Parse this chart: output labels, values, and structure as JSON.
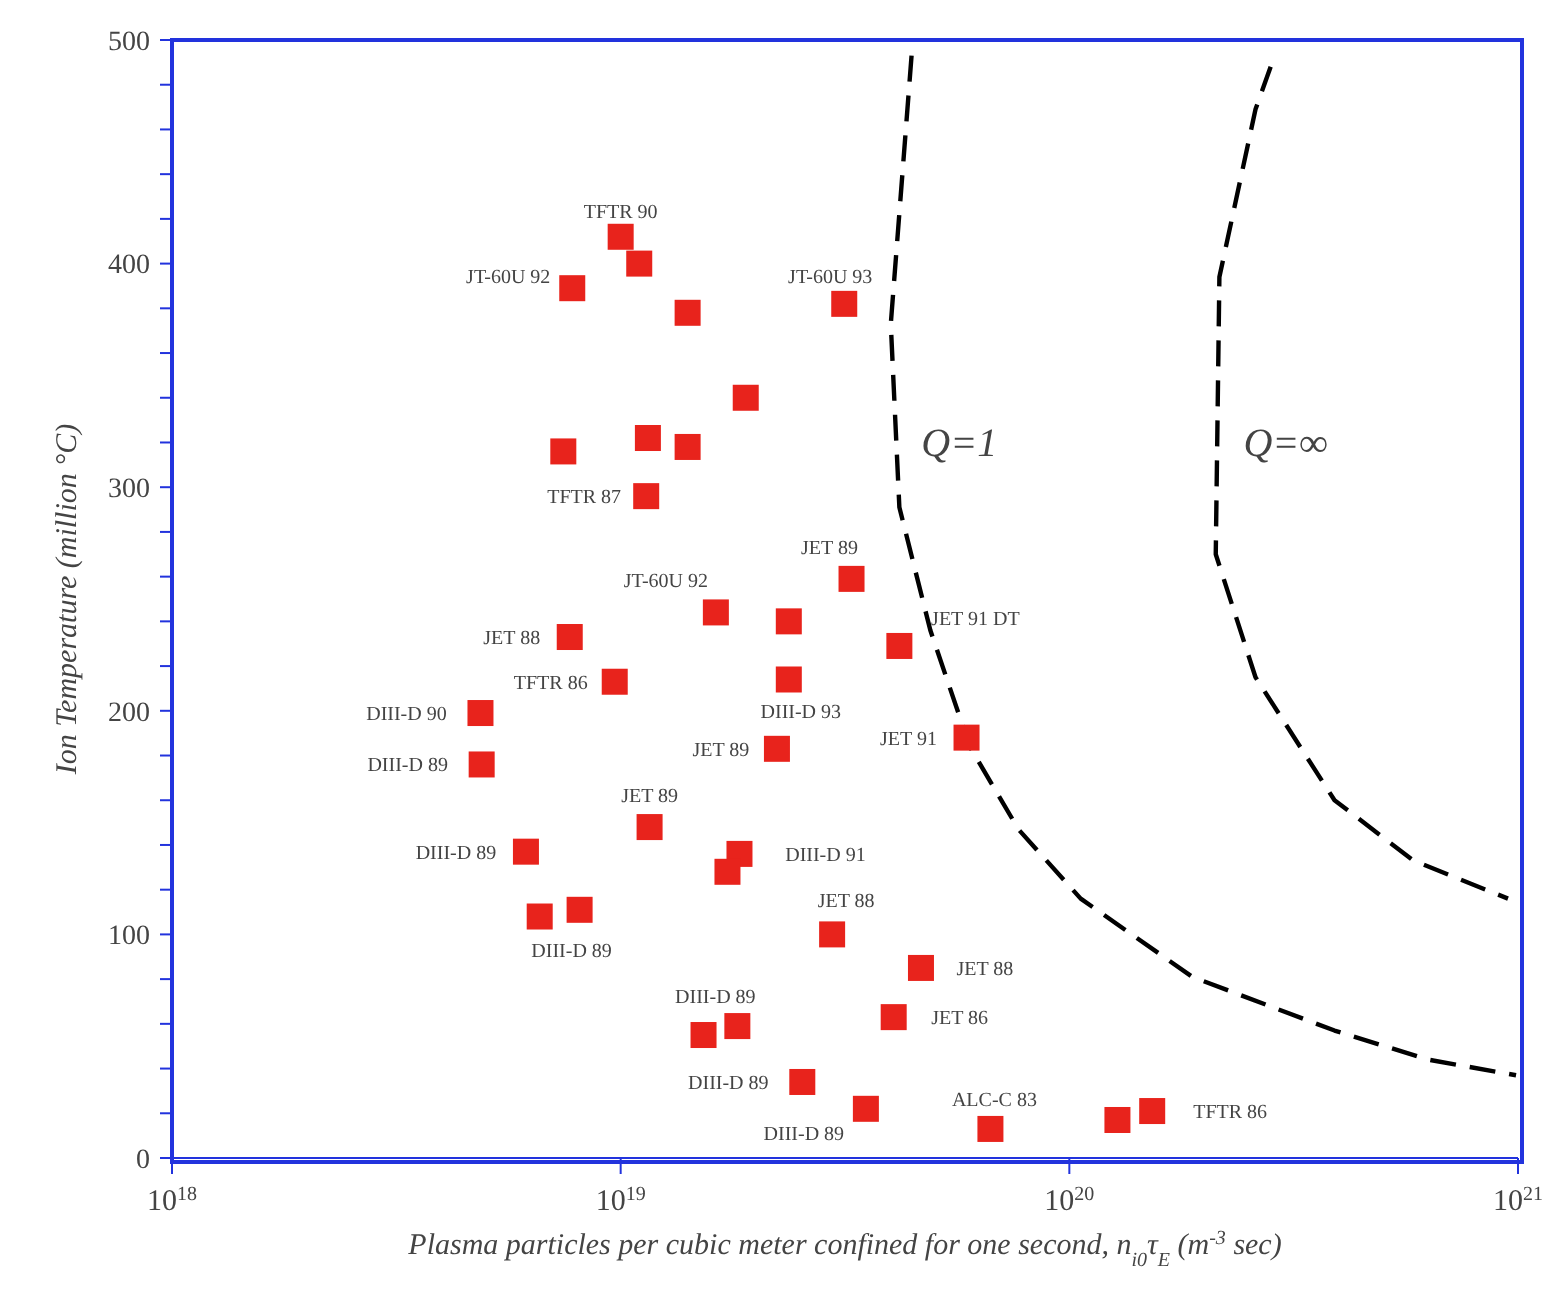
{
  "chart_data": {
    "type": "scatter",
    "xlabel": "Plasma particles per cubic meter confined for one second,  n$_{i0}$τ$_{E}$ (m$^{-3}$ sec)",
    "ylabel": "Ion Temperature (million °C)",
    "log": "x",
    "xlim": [
      1e+18,
      1e+21
    ],
    "xticks": [
      {
        "value": 1e+18,
        "label": "10$^{18}$"
      },
      {
        "value": 1e+19,
        "label": "10$^{19}$"
      },
      {
        "value": 1e+20,
        "label": "10$^{20}$"
      },
      {
        "value": 1e+21,
        "label": "10$^{21}$"
      }
    ],
    "ylim": [
      0,
      500
    ],
    "yticks": [
      0,
      {
        "value": 20,
        "label": null
      },
      {
        "value": 40,
        "label": null
      },
      {
        "value": 60,
        "label": null
      },
      {
        "value": 80,
        "label": null
      },
      100,
      {
        "value": 120,
        "label": null
      },
      {
        "value": 140,
        "label": null
      },
      {
        "value": 160,
        "label": null
      },
      {
        "value": 180,
        "label": null
      },
      200,
      {
        "value": 220,
        "label": null
      },
      {
        "value": 240,
        "label": null
      },
      {
        "value": 260,
        "label": null
      },
      {
        "value": 280,
        "label": null
      },
      300,
      {
        "value": 320,
        "label": null
      },
      {
        "value": 340,
        "label": null
      },
      {
        "value": 360,
        "label": null
      },
      {
        "value": 380,
        "label": null
      },
      400,
      {
        "value": 420,
        "label": null
      },
      {
        "value": 440,
        "label": null
      },
      {
        "value": 460,
        "label": null
      },
      {
        "value": 480,
        "label": null
      },
      500
    ],
    "marker": "square",
    "series": [
      {
        "color": "#e8231c",
        "x": [
          1e+19,
          1.1e+19,
          7.8e+18,
          1.41e+19,
          3.15e+19,
          1.9e+19,
          7.45e+18,
          1.15e+19,
          1.41e+19,
          1.14e+19,
          3.27e+19,
          1.63e+19,
          2.37e+19,
          4.18e+19,
          7.7e+18,
          9.7e+18,
          2.37e+19,
          4.87e+18,
          2.23e+19,
          5.9e+19,
          4.9e+18,
          1.16e+19,
          6.15e+18,
          1.84e+19,
          1.73e+19,
          6.6e+18,
          8.1e+18,
          2.96e+19,
          4.67e+19,
          4.06e+19,
          1.53e+19,
          1.82e+19,
          2.54e+19,
          3.52e+19,
          6.67e+19,
          1.28e+20,
          1.53e+20
        ],
        "values": [
          412,
          400,
          389,
          378,
          382,
          340,
          316,
          322,
          318,
          296,
          259,
          244,
          240,
          229,
          233,
          213,
          214,
          199,
          183,
          188,
          176,
          148,
          137,
          136,
          128,
          108,
          111,
          100,
          85,
          63,
          55,
          59,
          34,
          22,
          13,
          17,
          21
        ]
      },
      {
        "type": "line",
        "color": "#000000",
        "line_style": "dashed",
        "marker": "none",
        "x": [
          4.45e+19,
          4e+19,
          4.18e+19,
          4.9e+19,
          6e+19,
          7.7e+19,
          1.06e+20,
          1.88e+20,
          3.9e+20,
          6.3e+20,
          9.9e+20
        ],
        "values": [
          493,
          373,
          291,
          236,
          184,
          147,
          116,
          81,
          57,
          44,
          37
        ]
      },
      {
        "type": "line",
        "color": "#000000",
        "line_style": "dashed",
        "marker": "none",
        "x": [
          2.81e+20,
          2.6e+20,
          2.16e+20,
          2.12e+20,
          2.6e+20,
          3.9e+20,
          5.85e+20,
          9.5e+20
        ],
        "values": [
          488,
          469,
          394,
          270,
          215,
          160,
          133,
          116
        ]
      }
    ],
    "annotations": [
      {
        "text": "Q=1",
        "x": 4.05e+19,
        "y": 320
      },
      {
        "text": "Q=∞",
        "x": 2.14e+20,
        "y": 320
      },
      {
        "text": "TFTR 90",
        "x": 1e+19,
        "y": 412
      },
      {
        "text": "JT-60U 92",
        "x": 7.8e+18,
        "y": 389
      },
      {
        "text": "JT-60U 93",
        "x": 3.15e+19,
        "y": 382
      },
      {
        "text": "TFTR 87",
        "x": 1.14e+19,
        "y": 296
      },
      {
        "text": "JET 89",
        "x": 3.27e+19,
        "y": 259
      },
      {
        "text": "JT-60U 92",
        "x": 1.63e+19,
        "y": 244
      },
      {
        "text": "JET 91 DT",
        "x": 4.18e+19,
        "y": 229
      },
      {
        "text": "JET 88",
        "x": 7.7e+18,
        "y": 233
      },
      {
        "text": "TFTR 86",
        "x": 9.7e+18,
        "y": 213
      },
      {
        "text": "DIII-D 93",
        "x": 2.37e+19,
        "y": 214
      },
      {
        "text": "DIII-D 90",
        "x": 4.87e+18,
        "y": 199
      },
      {
        "text": "JET 89",
        "x": 2.23e+19,
        "y": 183
      },
      {
        "text": "JET 91",
        "x": 5.9e+19,
        "y": 188
      },
      {
        "text": "DIII-D 89",
        "x": 4.9e+18,
        "y": 176
      },
      {
        "text": "JET 89",
        "x": 1.16e+19,
        "y": 148
      },
      {
        "text": "DIII-D 89",
        "x": 6.15e+18,
        "y": 137
      },
      {
        "text": "DIII-D 91",
        "x": 1.84e+19,
        "y": 136
      },
      {
        "text": "DIII-D 89",
        "x": 8.1e+18,
        "y": 111
      },
      {
        "text": "JET 88",
        "x": 2.96e+19,
        "y": 100
      },
      {
        "text": "JET 88",
        "x": 4.67e+19,
        "y": 85
      },
      {
        "text": "JET 86",
        "x": 4.06e+19,
        "y": 63
      },
      {
        "text": "DIII-D 89",
        "x": 1.82e+19,
        "y": 59
      },
      {
        "text": "DIII-D 89",
        "x": 2.54e+19,
        "y": 34
      },
      {
        "text": "DIII-D 89",
        "x": 3.52e+19,
        "y": 22
      },
      {
        "text": "ALC-C 83",
        "x": 6.67e+19,
        "y": 13
      },
      {
        "text": "TFTR 86",
        "x": 1.53e+20,
        "y": 21
      }
    ]
  }
}
